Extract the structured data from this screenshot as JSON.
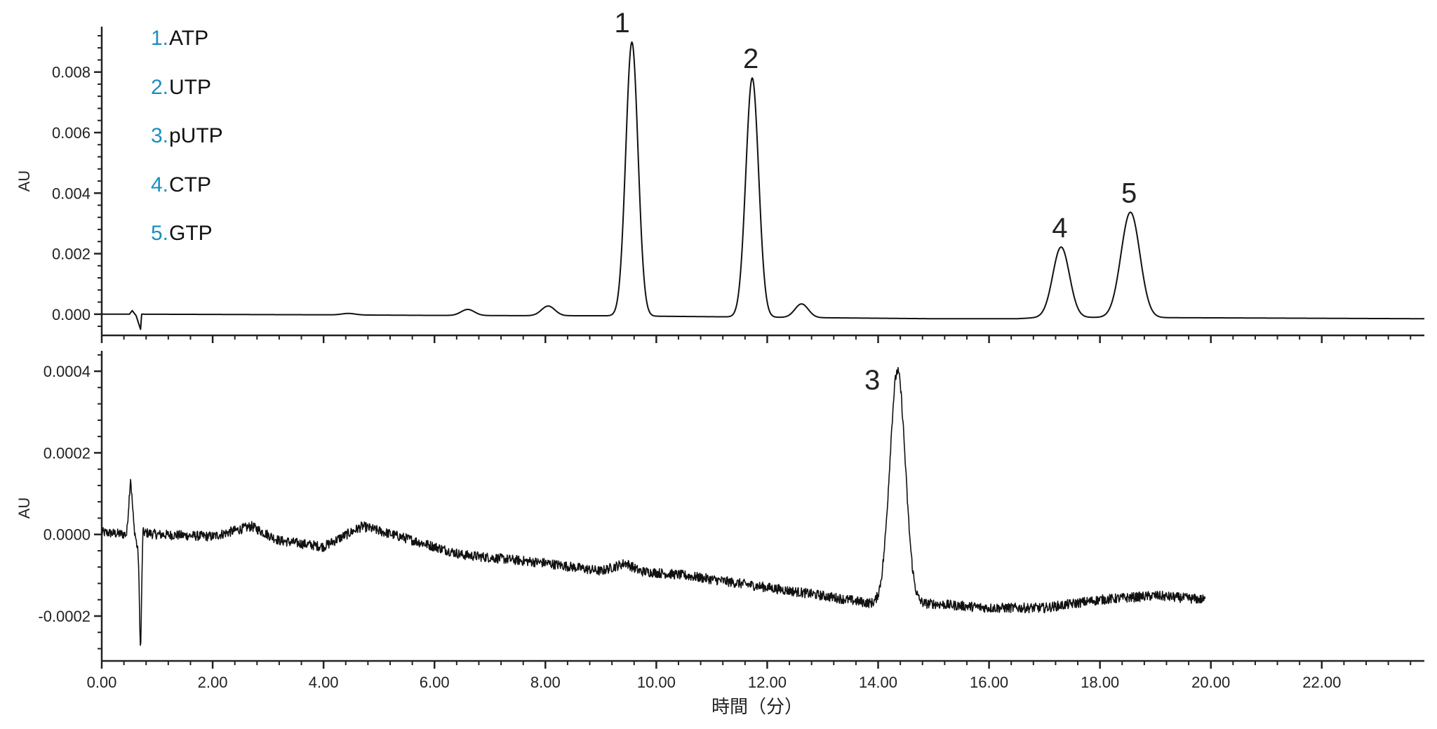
{
  "colors": {
    "trace": "#111111",
    "axis": "#222222",
    "legend_number": "#1a8fc0"
  },
  "legend": [
    {
      "number": "1.",
      "name": "ATP"
    },
    {
      "number": "2.",
      "name": "UTP"
    },
    {
      "number": "3.",
      "name": "pUTP"
    },
    {
      "number": "4.",
      "name": "CTP"
    },
    {
      "number": "5.",
      "name": "GTP"
    }
  ],
  "chart_data": [
    {
      "type": "line",
      "ylabel": "AU",
      "xlim": [
        0,
        23.85
      ],
      "ylim": [
        -0.0007,
        0.0095
      ],
      "yticks": [
        0.0,
        0.002,
        0.004,
        0.006,
        0.008
      ],
      "ytick_labels": [
        "0.000",
        "0.002",
        "0.004",
        "0.006",
        "0.008"
      ],
      "baseline": [
        [
          0.0,
          0.0
        ],
        [
          0.5,
          0.0
        ],
        [
          0.55,
          0.00012
        ],
        [
          0.62,
          -5e-05
        ],
        [
          0.7,
          -0.0005
        ],
        [
          0.72,
          0.0
        ],
        [
          4.0,
          -2e-05
        ],
        [
          6.0,
          -4e-05
        ],
        [
          8.0,
          -5e-05
        ],
        [
          9.0,
          -5e-05
        ],
        [
          15.0,
          -0.00015
        ],
        [
          16.5,
          -0.00015
        ],
        [
          17.0,
          -0.0001
        ],
        [
          20.0,
          -0.00012
        ],
        [
          23.85,
          -0.00015
        ]
      ],
      "peaks": [
        {
          "label": "",
          "rt": 4.45,
          "height": 5e-05,
          "width": 0.12
        },
        {
          "label": "",
          "rt": 6.6,
          "height": 0.0002,
          "width": 0.12
        },
        {
          "label": "",
          "rt": 8.05,
          "height": 0.00032,
          "width": 0.12
        },
        {
          "label": "1",
          "rt": 9.56,
          "height": 0.00905,
          "width": 0.11
        },
        {
          "label": "2",
          "rt": 11.73,
          "height": 0.0079,
          "width": 0.115
        },
        {
          "label": "",
          "rt": 12.62,
          "height": 0.00045,
          "width": 0.12
        },
        {
          "label": "4",
          "rt": 17.3,
          "height": 0.00232,
          "width": 0.15
        },
        {
          "label": "5",
          "rt": 18.55,
          "height": 0.00348,
          "width": 0.17
        }
      ]
    },
    {
      "type": "line",
      "ylabel": "AU",
      "xlabel": "時間（分）",
      "xlim": [
        0,
        23.85
      ],
      "ylim": [
        -0.00031,
        0.00045
      ],
      "xticks": [
        0,
        2,
        4,
        6,
        8,
        10,
        12,
        14,
        16,
        18,
        20,
        22
      ],
      "xtick_labels": [
        "0.00",
        "2.00",
        "4.00",
        "6.00",
        "8.00",
        "10.00",
        "12.00",
        "14.00",
        "16.00",
        "18.00",
        "20.00",
        "22.00"
      ],
      "yticks": [
        -0.0002,
        0.0,
        0.0002,
        0.0004
      ],
      "ytick_labels": [
        "-0.0002",
        "0.0000",
        "0.0002",
        "0.0004"
      ],
      "x_end": 19.9,
      "noise_amplitude": 1.2e-05,
      "baseline": [
        [
          0.0,
          5e-06
        ],
        [
          0.45,
          0.0
        ],
        [
          0.52,
          0.00014
        ],
        [
          0.58,
          2e-05
        ],
        [
          0.66,
          -5e-05
        ],
        [
          0.7,
          -0.0003
        ],
        [
          0.74,
          5e-06
        ],
        [
          1.0,
          0.0
        ],
        [
          2.0,
          -5e-06
        ],
        [
          2.7,
          2e-05
        ],
        [
          3.2,
          -1.5e-05
        ],
        [
          4.0,
          -3e-05
        ],
        [
          4.7,
          2e-05
        ],
        [
          5.5,
          -1e-05
        ],
        [
          6.5,
          -5e-05
        ],
        [
          8.0,
          -7e-05
        ],
        [
          9.0,
          -9e-05
        ],
        [
          9.45,
          -7e-05
        ],
        [
          9.7,
          -9e-05
        ],
        [
          10.5,
          -0.0001
        ],
        [
          12.0,
          -0.00013
        ],
        [
          13.0,
          -0.00015
        ],
        [
          13.9,
          -0.00017
        ],
        [
          15.0,
          -0.00017
        ],
        [
          16.0,
          -0.00018
        ],
        [
          17.0,
          -0.00018
        ],
        [
          18.0,
          -0.00016
        ],
        [
          19.0,
          -0.00015
        ],
        [
          19.9,
          -0.00016
        ]
      ],
      "peaks": [
        {
          "label": "3",
          "rt": 14.35,
          "height": 0.00057,
          "width": 0.14
        }
      ]
    }
  ]
}
